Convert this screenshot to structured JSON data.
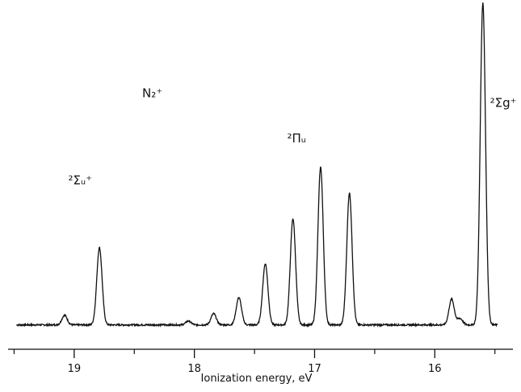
{
  "chart_data": {
    "type": "line",
    "title": "",
    "xlabel": "Ionization energy, eV",
    "ylabel": "",
    "x_reversed": true,
    "xlim": [
      19.55,
      15.35
    ],
    "ylim": [
      0,
      1
    ],
    "grid": false,
    "ticks": {
      "major": [
        19,
        18,
        17,
        16
      ],
      "major_labels": [
        "19",
        "18",
        "17",
        "16"
      ],
      "minor": [
        19.5,
        18.5,
        17.5,
        16.5,
        15.5
      ]
    },
    "baseline": 0.003,
    "series": [
      {
        "name": "",
        "peaks": [
          {
            "x": 19.08,
            "y": 0.03
          },
          {
            "x": 18.79,
            "y": 0.24
          },
          {
            "x": 18.05,
            "y": 0.012
          },
          {
            "x": 17.84,
            "y": 0.035
          },
          {
            "x": 17.63,
            "y": 0.085
          },
          {
            "x": 17.41,
            "y": 0.19
          },
          {
            "x": 17.18,
            "y": 0.33
          },
          {
            "x": 16.95,
            "y": 0.49
          },
          {
            "x": 16.71,
            "y": 0.41
          },
          {
            "x": 15.86,
            "y": 0.08
          },
          {
            "x": 15.79,
            "y": 0.02
          },
          {
            "x": 15.6,
            "y": 1.0
          }
        ]
      }
    ],
    "annotations": [
      {
        "text": "N₂⁺",
        "x": 18.35,
        "y": 0.71
      },
      {
        "text": "²Σᵤ⁺",
        "x": 18.95,
        "y": 0.44
      },
      {
        "text": "²Πᵤ",
        "x": 17.15,
        "y": 0.57
      },
      {
        "text": "²Σg⁺",
        "x": 15.43,
        "y": 0.68
      }
    ]
  }
}
